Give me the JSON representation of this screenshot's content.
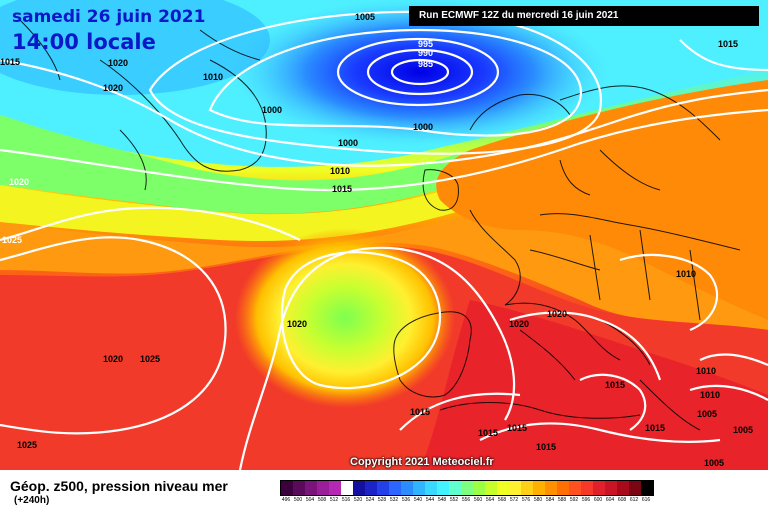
{
  "header": {
    "date_title": "samedi 26 juin 2021",
    "time_title": "14:00 locale",
    "run_info": "Run ECMWF 12Z du mercredi 16 juin 2021"
  },
  "footer": {
    "parameter_title": "Géop. z500, pression niveau mer",
    "forecast_horizon": "(+240h)",
    "copyright": "Copyright 2021 Meteociel.fr"
  },
  "colors": {
    "deep_low": "#0000ff",
    "low": "#28a8ff",
    "cyan": "#4ef0ff",
    "green": "#7dff6a",
    "yellow": "#fff030",
    "orange": "#ff9a00",
    "red": "#f23a2a",
    "isobars": "#ffffff",
    "borders": "#000000"
  },
  "scale": {
    "labels": [
      "496",
      "500",
      "504",
      "508",
      "512",
      "516",
      "520",
      "524",
      "528",
      "532",
      "536",
      "540",
      "544",
      "548",
      "552",
      "556",
      "560",
      "564",
      "568",
      "572",
      "576",
      "580",
      "584",
      "588",
      "592",
      "596",
      "600",
      "604",
      "608",
      "612",
      "616"
    ],
    "colors": [
      "#3c003c",
      "#5a0a5a",
      "#7a147a",
      "#9a1e9a",
      "#b428b4",
      "#ffffff",
      "#1410a0",
      "#1c24c8",
      "#2440e8",
      "#2a66ff",
      "#2a8cff",
      "#30b4ff",
      "#38d8ff",
      "#42f2ff",
      "#60ffd0",
      "#7dff80",
      "#9cff44",
      "#c6ff2a",
      "#f0ff24",
      "#fff030",
      "#ffd018",
      "#ffb000",
      "#ff9000",
      "#ff7000",
      "#ff5020",
      "#f53828",
      "#e0202a",
      "#c81424",
      "#a80a1c",
      "#7a0614",
      "#000000"
    ]
  },
  "isobars": [
    {
      "label": "1005",
      "kind": "black"
    },
    {
      "label": "995",
      "kind": "white"
    },
    {
      "label": "990",
      "kind": "white"
    },
    {
      "label": "985",
      "kind": "white"
    },
    {
      "label": "1015",
      "kind": "black"
    },
    {
      "label": "1015",
      "kind": "black"
    },
    {
      "label": "1020",
      "kind": "black"
    },
    {
      "label": "1020",
      "kind": "black"
    },
    {
      "label": "1010",
      "kind": "black"
    },
    {
      "label": "1000",
      "kind": "black"
    },
    {
      "label": "1000",
      "kind": "black"
    },
    {
      "label": "1000",
      "kind": "black"
    },
    {
      "label": "1010",
      "kind": "black"
    },
    {
      "label": "1015",
      "kind": "black"
    },
    {
      "label": "1020",
      "kind": "white"
    },
    {
      "label": "1025",
      "kind": "white"
    },
    {
      "label": "1010",
      "kind": "black"
    },
    {
      "label": "1020",
      "kind": "black"
    },
    {
      "label": "1020",
      "kind": "black"
    },
    {
      "label": "1020",
      "kind": "black"
    },
    {
      "label": "1020",
      "kind": "black"
    },
    {
      "label": "1025",
      "kind": "black"
    },
    {
      "label": "1015",
      "kind": "black"
    },
    {
      "label": "1015",
      "kind": "black"
    },
    {
      "label": "1010",
      "kind": "black"
    },
    {
      "label": "1010",
      "kind": "black"
    },
    {
      "label": "1005",
      "kind": "black"
    },
    {
      "label": "1015",
      "kind": "black"
    },
    {
      "label": "1015",
      "kind": "black"
    },
    {
      "label": "1015",
      "kind": "black"
    },
    {
      "label": "1015",
      "kind": "black"
    },
    {
      "label": "1005",
      "kind": "black"
    },
    {
      "label": "1025",
      "kind": "black"
    },
    {
      "label": "1005",
      "kind": "black"
    }
  ]
}
